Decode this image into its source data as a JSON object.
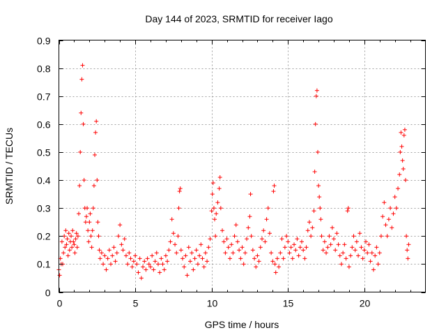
{
  "chart_data": {
    "type": "scatter",
    "title": "Day 144 of 2023, SRMTID for receiver Iago",
    "xlabel": "GPS time / hours",
    "ylabel": "SRMTID / TECUs",
    "xlim": [
      0,
      24
    ],
    "ylim": [
      0,
      0.9
    ],
    "xticks": [
      0,
      5,
      10,
      15,
      20
    ],
    "yticks": [
      0,
      0.1,
      0.2,
      0.3,
      0.4,
      0.5,
      0.6,
      0.7,
      0.8,
      0.9
    ],
    "ytick_labels": [
      "0",
      "0.1",
      "0.2",
      "0.3",
      "0.4",
      "0.5",
      "0.6",
      "0.7",
      "0.8",
      "0.9"
    ],
    "grid": true,
    "marker": "+",
    "color": "#ff0000",
    "series": [
      {
        "name": "SRMTID",
        "points": [
          [
            0.0,
            0.08
          ],
          [
            0.05,
            0.06
          ],
          [
            0.1,
            0.12
          ],
          [
            0.15,
            0.1
          ],
          [
            0.2,
            0.18
          ],
          [
            0.25,
            0.1
          ],
          [
            0.3,
            0.14
          ],
          [
            0.35,
            0.2
          ],
          [
            0.4,
            0.16
          ],
          [
            0.45,
            0.22
          ],
          [
            0.5,
            0.17
          ],
          [
            0.55,
            0.19
          ],
          [
            0.6,
            0.13
          ],
          [
            0.65,
            0.21
          ],
          [
            0.7,
            0.15
          ],
          [
            0.75,
            0.18
          ],
          [
            0.8,
            0.2
          ],
          [
            0.85,
            0.16
          ],
          [
            0.9,
            0.22
          ],
          [
            0.95,
            0.18
          ],
          [
            1.0,
            0.17
          ],
          [
            1.05,
            0.14
          ],
          [
            1.1,
            0.19
          ],
          [
            1.15,
            0.21
          ],
          [
            1.2,
            0.16
          ],
          [
            1.25,
            0.2
          ],
          [
            1.3,
            0.28
          ],
          [
            1.35,
            0.38
          ],
          [
            1.4,
            0.5
          ],
          [
            1.45,
            0.64
          ],
          [
            1.5,
            0.76
          ],
          [
            1.55,
            0.81
          ],
          [
            1.6,
            0.6
          ],
          [
            1.65,
            0.4
          ],
          [
            1.7,
            0.3
          ],
          [
            1.75,
            0.25
          ],
          [
            1.8,
            0.27
          ],
          [
            1.85,
            0.3
          ],
          [
            1.9,
            0.22
          ],
          [
            1.95,
            0.18
          ],
          [
            2.0,
            0.25
          ],
          [
            2.05,
            0.28
          ],
          [
            2.1,
            0.2
          ],
          [
            2.15,
            0.16
          ],
          [
            2.2,
            0.22
          ],
          [
            2.25,
            0.3
          ],
          [
            2.3,
            0.38
          ],
          [
            2.35,
            0.49
          ],
          [
            2.4,
            0.57
          ],
          [
            2.45,
            0.61
          ],
          [
            2.5,
            0.4
          ],
          [
            2.55,
            0.25
          ],
          [
            2.6,
            0.2
          ],
          [
            2.65,
            0.15
          ],
          [
            2.7,
            0.12
          ],
          [
            2.8,
            0.14
          ],
          [
            2.9,
            0.1
          ],
          [
            3.0,
            0.13
          ],
          [
            3.1,
            0.08
          ],
          [
            3.2,
            0.12
          ],
          [
            3.3,
            0.15
          ],
          [
            3.4,
            0.1
          ],
          [
            3.5,
            0.13
          ],
          [
            3.6,
            0.16
          ],
          [
            3.7,
            0.11
          ],
          [
            3.8,
            0.14
          ],
          [
            3.9,
            0.2
          ],
          [
            4.0,
            0.24
          ],
          [
            4.1,
            0.17
          ],
          [
            4.2,
            0.15
          ],
          [
            4.3,
            0.19
          ],
          [
            4.4,
            0.13
          ],
          [
            4.5,
            0.1
          ],
          [
            4.6,
            0.14
          ],
          [
            4.7,
            0.12
          ],
          [
            4.8,
            0.09
          ],
          [
            4.9,
            0.11
          ],
          [
            5.0,
            0.13
          ],
          [
            5.1,
            0.1
          ],
          [
            5.2,
            0.07
          ],
          [
            5.3,
            0.12
          ],
          [
            5.4,
            0.05
          ],
          [
            5.5,
            0.09
          ],
          [
            5.6,
            0.11
          ],
          [
            5.7,
            0.08
          ],
          [
            5.8,
            0.12
          ],
          [
            5.9,
            0.1
          ],
          [
            6.0,
            0.09
          ],
          [
            6.1,
            0.13
          ],
          [
            6.2,
            0.08
          ],
          [
            6.3,
            0.11
          ],
          [
            6.4,
            0.14
          ],
          [
            6.5,
            0.1
          ],
          [
            6.6,
            0.07
          ],
          [
            6.7,
            0.12
          ],
          [
            6.8,
            0.1
          ],
          [
            6.9,
            0.08
          ],
          [
            7.0,
            0.13
          ],
          [
            7.1,
            0.11
          ],
          [
            7.2,
            0.15
          ],
          [
            7.3,
            0.18
          ],
          [
            7.4,
            0.26
          ],
          [
            7.5,
            0.21
          ],
          [
            7.6,
            0.17
          ],
          [
            7.7,
            0.14
          ],
          [
            7.8,
            0.2
          ],
          [
            7.85,
            0.3
          ],
          [
            7.9,
            0.36
          ],
          [
            7.95,
            0.37
          ],
          [
            8.0,
            0.15
          ],
          [
            8.1,
            0.12
          ],
          [
            8.2,
            0.09
          ],
          [
            8.3,
            0.13
          ],
          [
            8.4,
            0.06
          ],
          [
            8.5,
            0.16
          ],
          [
            8.6,
            0.11
          ],
          [
            8.7,
            0.14
          ],
          [
            8.8,
            0.08
          ],
          [
            8.9,
            0.12
          ],
          [
            9.0,
            0.15
          ],
          [
            9.1,
            0.1
          ],
          [
            9.2,
            0.13
          ],
          [
            9.3,
            0.17
          ],
          [
            9.4,
            0.12
          ],
          [
            9.5,
            0.09
          ],
          [
            9.6,
            0.14
          ],
          [
            9.7,
            0.11
          ],
          [
            9.8,
            0.16
          ],
          [
            9.9,
            0.19
          ],
          [
            10.0,
            0.29
          ],
          [
            10.05,
            0.35
          ],
          [
            10.1,
            0.39
          ],
          [
            10.15,
            0.3
          ],
          [
            10.2,
            0.26
          ],
          [
            10.25,
            0.2
          ],
          [
            10.3,
            0.28
          ],
          [
            10.4,
            0.32
          ],
          [
            10.5,
            0.37
          ],
          [
            10.55,
            0.41
          ],
          [
            10.6,
            0.3
          ],
          [
            10.7,
            0.22
          ],
          [
            10.8,
            0.18
          ],
          [
            10.9,
            0.14
          ],
          [
            11.0,
            0.19
          ],
          [
            11.1,
            0.16
          ],
          [
            11.2,
            0.12
          ],
          [
            11.3,
            0.17
          ],
          [
            11.4,
            0.14
          ],
          [
            11.5,
            0.2
          ],
          [
            11.6,
            0.24
          ],
          [
            11.7,
            0.18
          ],
          [
            11.8,
            0.15
          ],
          [
            11.9,
            0.12
          ],
          [
            12.0,
            0.16
          ],
          [
            12.1,
            0.1
          ],
          [
            12.2,
            0.14
          ],
          [
            12.3,
            0.19
          ],
          [
            12.4,
            0.23
          ],
          [
            12.5,
            0.27
          ],
          [
            12.55,
            0.35
          ],
          [
            12.6,
            0.2
          ],
          [
            12.7,
            0.15
          ],
          [
            12.8,
            0.12
          ],
          [
            12.9,
            0.09
          ],
          [
            13.0,
            0.13
          ],
          [
            13.1,
            0.11
          ],
          [
            13.2,
            0.16
          ],
          [
            13.3,
            0.19
          ],
          [
            13.4,
            0.22
          ],
          [
            13.5,
            0.18
          ],
          [
            13.6,
            0.26
          ],
          [
            13.7,
            0.3
          ],
          [
            13.8,
            0.21
          ],
          [
            13.9,
            0.14
          ],
          [
            14.0,
            0.11
          ],
          [
            14.05,
            0.36
          ],
          [
            14.1,
            0.38
          ],
          [
            14.15,
            0.1
          ],
          [
            14.2,
            0.07
          ],
          [
            14.3,
            0.12
          ],
          [
            14.4,
            0.09
          ],
          [
            14.5,
            0.14
          ],
          [
            14.6,
            0.19
          ],
          [
            14.7,
            0.12
          ],
          [
            14.8,
            0.16
          ],
          [
            14.9,
            0.2
          ],
          [
            15.0,
            0.18
          ],
          [
            15.1,
            0.14
          ],
          [
            15.2,
            0.16
          ],
          [
            15.3,
            0.12
          ],
          [
            15.4,
            0.17
          ],
          [
            15.5,
            0.15
          ],
          [
            15.6,
            0.19
          ],
          [
            15.7,
            0.13
          ],
          [
            15.8,
            0.16
          ],
          [
            15.9,
            0.18
          ],
          [
            16.0,
            0.15
          ],
          [
            16.1,
            0.12
          ],
          [
            16.2,
            0.16
          ],
          [
            16.3,
            0.22
          ],
          [
            16.4,
            0.25
          ],
          [
            16.5,
            0.2
          ],
          [
            16.6,
            0.23
          ],
          [
            16.7,
            0.29
          ],
          [
            16.75,
            0.43
          ],
          [
            16.8,
            0.6
          ],
          [
            16.85,
            0.7
          ],
          [
            16.9,
            0.72
          ],
          [
            16.95,
            0.5
          ],
          [
            17.0,
            0.38
          ],
          [
            17.05,
            0.34
          ],
          [
            17.1,
            0.3
          ],
          [
            17.15,
            0.26
          ],
          [
            17.2,
            0.2
          ],
          [
            17.3,
            0.15
          ],
          [
            17.4,
            0.18
          ],
          [
            17.5,
            0.14
          ],
          [
            17.6,
            0.16
          ],
          [
            17.7,
            0.2
          ],
          [
            17.8,
            0.17
          ],
          [
            17.9,
            0.23
          ],
          [
            18.0,
            0.19
          ],
          [
            18.1,
            0.15
          ],
          [
            18.2,
            0.21
          ],
          [
            18.3,
            0.17
          ],
          [
            18.4,
            0.13
          ],
          [
            18.5,
            0.1
          ],
          [
            18.6,
            0.14
          ],
          [
            18.7,
            0.17
          ],
          [
            18.8,
            0.12
          ],
          [
            18.9,
            0.29
          ],
          [
            18.95,
            0.3
          ],
          [
            19.0,
            0.09
          ],
          [
            19.1,
            0.13
          ],
          [
            19.2,
            0.16
          ],
          [
            19.3,
            0.2
          ],
          [
            19.4,
            0.15
          ],
          [
            19.5,
            0.18
          ],
          [
            19.6,
            0.13
          ],
          [
            19.7,
            0.21
          ],
          [
            19.8,
            0.16
          ],
          [
            19.9,
            0.12
          ],
          [
            20.0,
            0.15
          ],
          [
            20.1,
            0.18
          ],
          [
            20.2,
            0.14
          ],
          [
            20.3,
            0.17
          ],
          [
            20.4,
            0.11
          ],
          [
            20.5,
            0.14
          ],
          [
            20.6,
            0.08
          ],
          [
            20.7,
            0.13
          ],
          [
            20.8,
            0.16
          ],
          [
            20.9,
            0.1
          ],
          [
            21.0,
            0.14
          ],
          [
            21.1,
            0.2
          ],
          [
            21.2,
            0.27
          ],
          [
            21.3,
            0.32
          ],
          [
            21.4,
            0.24
          ],
          [
            21.5,
            0.2
          ],
          [
            21.6,
            0.26
          ],
          [
            21.7,
            0.3
          ],
          [
            21.8,
            0.23
          ],
          [
            21.9,
            0.28
          ],
          [
            22.0,
            0.34
          ],
          [
            22.1,
            0.3
          ],
          [
            22.2,
            0.37
          ],
          [
            22.3,
            0.42
          ],
          [
            22.35,
            0.5
          ],
          [
            22.4,
            0.57
          ],
          [
            22.45,
            0.52
          ],
          [
            22.5,
            0.47
          ],
          [
            22.55,
            0.44
          ],
          [
            22.6,
            0.56
          ],
          [
            22.65,
            0.58
          ],
          [
            22.7,
            0.4
          ],
          [
            22.75,
            0.2
          ],
          [
            22.8,
            0.15
          ],
          [
            22.85,
            0.12
          ],
          [
            22.9,
            0.17
          ]
        ]
      }
    ]
  }
}
